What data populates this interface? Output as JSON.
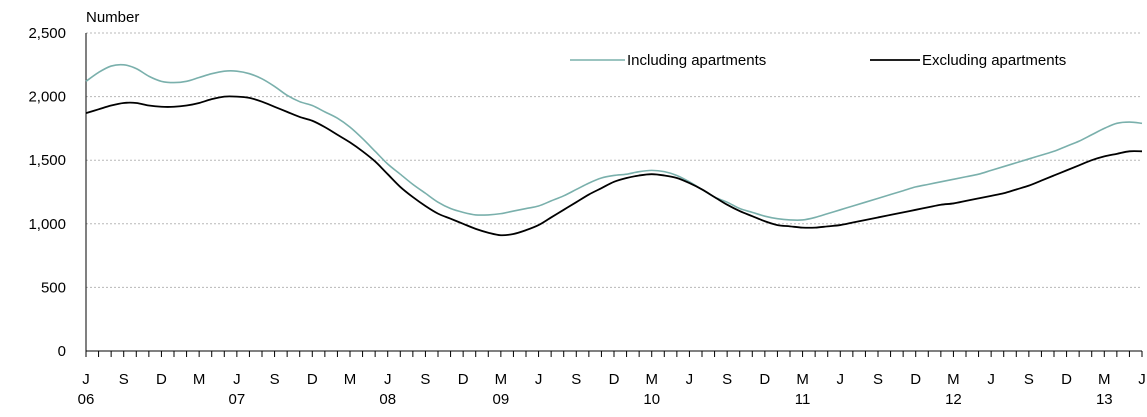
{
  "chart_data": {
    "type": "line",
    "title": "",
    "ylabel": "Number",
    "xlabel": "",
    "ylim": [
      0,
      2500
    ],
    "y_ticks": [
      0,
      500,
      1000,
      1500,
      2000,
      2500
    ],
    "y_tick_labels": [
      "0",
      "500",
      "1,000",
      "1,500",
      "2,000",
      "2,500"
    ],
    "grid": "horizontal dotted at 500, 1,000, 1,500, 2,000, 2,500",
    "legend": "top-right",
    "x_month_labels": [
      {
        "month": "2006-06",
        "label": "J"
      },
      {
        "month": "2006-09",
        "label": "S"
      },
      {
        "month": "2006-12",
        "label": "D"
      },
      {
        "month": "2007-03",
        "label": "M"
      },
      {
        "month": "2007-06",
        "label": "J"
      },
      {
        "month": "2007-09",
        "label": "S"
      },
      {
        "month": "2007-12",
        "label": "D"
      },
      {
        "month": "2008-03",
        "label": "M"
      },
      {
        "month": "2008-06",
        "label": "J"
      },
      {
        "month": "2008-09",
        "label": "S"
      },
      {
        "month": "2008-12",
        "label": "D"
      },
      {
        "month": "2009-03",
        "label": "M"
      },
      {
        "month": "2009-06",
        "label": "J"
      },
      {
        "month": "2009-09",
        "label": "S"
      },
      {
        "month": "2009-12",
        "label": "D"
      },
      {
        "month": "2010-03",
        "label": "M"
      },
      {
        "month": "2010-06",
        "label": "J"
      },
      {
        "month": "2010-09",
        "label": "S"
      },
      {
        "month": "2010-12",
        "label": "D"
      },
      {
        "month": "2011-03",
        "label": "M"
      },
      {
        "month": "2011-06",
        "label": "J"
      },
      {
        "month": "2011-09",
        "label": "S"
      },
      {
        "month": "2011-12",
        "label": "D"
      },
      {
        "month": "2012-03",
        "label": "M"
      },
      {
        "month": "2012-06",
        "label": "J"
      },
      {
        "month": "2012-09",
        "label": "S"
      },
      {
        "month": "2012-12",
        "label": "D"
      },
      {
        "month": "2013-03",
        "label": "M"
      },
      {
        "month": "2013-06",
        "label": "J"
      }
    ],
    "x_year_labels": [
      {
        "month": "2006-06",
        "label": "06"
      },
      {
        "month": "2007-06",
        "label": "07"
      },
      {
        "month": "2008-06",
        "label": "08"
      },
      {
        "month": "2009-03",
        "label": "09"
      },
      {
        "month": "2010-03",
        "label": "10"
      },
      {
        "month": "2011-03",
        "label": "11"
      },
      {
        "month": "2012-03",
        "label": "12"
      },
      {
        "month": "2013-03",
        "label": "13"
      }
    ],
    "x": [
      "2006-06",
      "2006-07",
      "2006-08",
      "2006-09",
      "2006-10",
      "2006-11",
      "2006-12",
      "2007-01",
      "2007-02",
      "2007-03",
      "2007-04",
      "2007-05",
      "2007-06",
      "2007-07",
      "2007-08",
      "2007-09",
      "2007-10",
      "2007-11",
      "2007-12",
      "2008-01",
      "2008-02",
      "2008-03",
      "2008-04",
      "2008-05",
      "2008-06",
      "2008-07",
      "2008-08",
      "2008-09",
      "2008-10",
      "2008-11",
      "2008-12",
      "2009-01",
      "2009-02",
      "2009-03",
      "2009-04",
      "2009-05",
      "2009-06",
      "2009-07",
      "2009-08",
      "2009-09",
      "2009-10",
      "2009-11",
      "2009-12",
      "2010-01",
      "2010-02",
      "2010-03",
      "2010-04",
      "2010-05",
      "2010-06",
      "2010-07",
      "2010-08",
      "2010-09",
      "2010-10",
      "2010-11",
      "2010-12",
      "2011-01",
      "2011-02",
      "2011-03",
      "2011-04",
      "2011-05",
      "2011-06",
      "2011-07",
      "2011-08",
      "2011-09",
      "2011-10",
      "2011-11",
      "2011-12",
      "2012-01",
      "2012-02",
      "2012-03",
      "2012-04",
      "2012-05",
      "2012-06",
      "2012-07",
      "2012-08",
      "2012-09",
      "2012-10",
      "2012-11",
      "2012-12",
      "2013-01",
      "2013-02",
      "2013-03",
      "2013-04",
      "2013-05",
      "2013-06"
    ],
    "series": [
      {
        "name": "Including apartments",
        "color": "#7ab0ac",
        "values": [
          2120,
          2190,
          2240,
          2250,
          2220,
          2160,
          2120,
          2110,
          2120,
          2150,
          2180,
          2200,
          2200,
          2180,
          2140,
          2080,
          2010,
          1960,
          1930,
          1880,
          1830,
          1760,
          1670,
          1570,
          1470,
          1390,
          1310,
          1240,
          1170,
          1120,
          1090,
          1070,
          1070,
          1080,
          1100,
          1120,
          1140,
          1180,
          1220,
          1270,
          1320,
          1360,
          1380,
          1390,
          1410,
          1420,
          1410,
          1380,
          1330,
          1270,
          1210,
          1170,
          1120,
          1090,
          1060,
          1040,
          1030,
          1030,
          1050,
          1080,
          1110,
          1140,
          1170,
          1200,
          1230,
          1260,
          1290,
          1310,
          1330,
          1350,
          1370,
          1390,
          1420,
          1450,
          1480,
          1510,
          1540,
          1570,
          1610,
          1650,
          1700,
          1750,
          1790,
          1800,
          1790
        ]
      },
      {
        "name": "Excluding apartments",
        "color": "#000000",
        "values": [
          1870,
          1900,
          1930,
          1950,
          1950,
          1930,
          1920,
          1920,
          1930,
          1950,
          1980,
          2000,
          2000,
          1990,
          1960,
          1920,
          1880,
          1840,
          1810,
          1760,
          1700,
          1640,
          1570,
          1490,
          1390,
          1290,
          1210,
          1140,
          1080,
          1040,
          1000,
          960,
          930,
          910,
          920,
          950,
          990,
          1050,
          1110,
          1170,
          1230,
          1280,
          1330,
          1360,
          1380,
          1390,
          1380,
          1360,
          1320,
          1270,
          1210,
          1150,
          1100,
          1060,
          1020,
          990,
          980,
          970,
          970,
          980,
          990,
          1010,
          1030,
          1050,
          1070,
          1090,
          1110,
          1130,
          1150,
          1160,
          1180,
          1200,
          1220,
          1240,
          1270,
          1300,
          1340,
          1380,
          1420,
          1460,
          1500,
          1530,
          1550,
          1570,
          1570
        ]
      }
    ]
  }
}
